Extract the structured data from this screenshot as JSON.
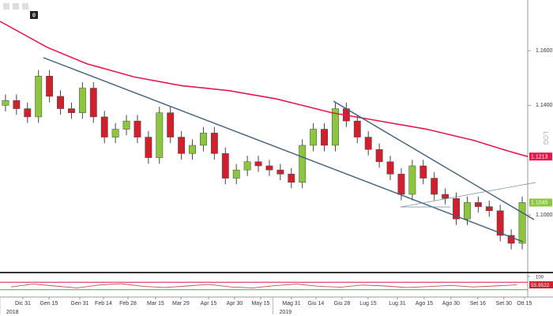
{
  "chart_data": {
    "type": "candlestick",
    "toolbar_label": "0",
    "scale_label": "LOG",
    "up_color": "#8cc63f",
    "down_color": "#d0202e",
    "xlim": [
      0,
      48
    ],
    "ylim": [
      1.0795,
      1.1785
    ],
    "yticks": [
      {
        "value": 1.16,
        "label": "1.1600"
      },
      {
        "value": 1.14,
        "label": "1.1400"
      },
      {
        "value": 1.1,
        "label": "1.1000"
      }
    ],
    "xticks": [
      {
        "value": 2.08,
        "label": "Dic 31"
      },
      {
        "value": 4.45,
        "label": "Gen 15"
      },
      {
        "value": 7.26,
        "label": "Gen 31"
      },
      {
        "value": 9.41,
        "label": "Feb 14"
      },
      {
        "value": 11.64,
        "label": "Feb 28"
      },
      {
        "value": 14.15,
        "label": "Mar 15"
      },
      {
        "value": 16.45,
        "label": "Mar 29"
      },
      {
        "value": 18.97,
        "label": "Apr 15"
      },
      {
        "value": 21.34,
        "label": "Apr 30"
      },
      {
        "value": 23.71,
        "label": "May 15"
      },
      {
        "value": 26.51,
        "label": "Mag 31"
      },
      {
        "value": 28.74,
        "label": "Giu 14"
      },
      {
        "value": 31.11,
        "label": "Giu 28"
      },
      {
        "value": 33.48,
        "label": "Lug 15"
      },
      {
        "value": 36.14,
        "label": "Lug 31"
      },
      {
        "value": 38.58,
        "label": "Ago 15"
      },
      {
        "value": 41.02,
        "label": "Ago 30"
      },
      {
        "value": 43.46,
        "label": "Set 16"
      },
      {
        "value": 45.83,
        "label": "Set 30"
      },
      {
        "value": 47.7,
        "label": "Ott 15"
      }
    ],
    "year_ticks": [
      {
        "value": 0.57,
        "label": "2018"
      },
      {
        "value": 25.4,
        "label": "2019"
      }
    ],
    "open": [
      1.14,
      1.1418,
      1.1388,
      1.1358,
      1.1507,
      1.1433,
      1.1388,
      1.1373,
      1.1463,
      1.1358,
      1.1284,
      1.1313,
      1.1343,
      1.1284,
      1.1209,
      1.1373,
      1.1284,
      1.1224,
      1.1254,
      1.1299,
      1.1224,
      1.1134,
      1.1164,
      1.1194,
      1.1179,
      1.1164,
      1.1149,
      1.1119,
      1.1254,
      1.1313,
      1.1254,
      1.1388,
      1.1343,
      1.1284,
      1.1239,
      1.1194,
      1.1149,
      1.1075,
      1.1179,
      1.1134,
      1.1075,
      1.106,
      1.0985,
      1.1045,
      1.103,
      1.1015,
      1.0925,
      1.0896
    ],
    "high": [
      1.144,
      1.144,
      1.141,
      1.1529,
      1.1529,
      1.1455,
      1.141,
      1.1485,
      1.1485,
      1.138,
      1.1335,
      1.1365,
      1.1365,
      1.1306,
      1.1395,
      1.1395,
      1.1306,
      1.1276,
      1.1321,
      1.1321,
      1.1246,
      1.1186,
      1.1216,
      1.1216,
      1.1201,
      1.1186,
      1.1171,
      1.1276,
      1.1335,
      1.1335,
      1.141,
      1.141,
      1.1365,
      1.1306,
      1.1261,
      1.1216,
      1.1171,
      1.1201,
      1.1201,
      1.1156,
      1.1097,
      1.1082,
      1.1067,
      1.1067,
      1.1052,
      1.1037,
      1.0947,
      1.1067
    ],
    "low": [
      1.1378,
      1.1366,
      1.1336,
      1.1336,
      1.1411,
      1.1366,
      1.1351,
      1.1351,
      1.1336,
      1.1262,
      1.1262,
      1.1291,
      1.1262,
      1.1187,
      1.1187,
      1.1262,
      1.1202,
      1.1202,
      1.1232,
      1.1202,
      1.1112,
      1.1112,
      1.1142,
      1.1157,
      1.1142,
      1.1127,
      1.1097,
      1.1097,
      1.1232,
      1.1232,
      1.1232,
      1.1321,
      1.1262,
      1.1217,
      1.1172,
      1.1127,
      1.1053,
      1.1053,
      1.1112,
      1.1053,
      1.1038,
      1.0963,
      1.0963,
      1.1008,
      1.0993,
      1.0903,
      1.0874,
      1.0874
    ],
    "close": [
      1.1418,
      1.1388,
      1.1358,
      1.1507,
      1.1433,
      1.1388,
      1.1373,
      1.1463,
      1.1358,
      1.1284,
      1.1313,
      1.1343,
      1.1284,
      1.1209,
      1.1373,
      1.1284,
      1.1224,
      1.1254,
      1.1299,
      1.1224,
      1.1134,
      1.1164,
      1.1194,
      1.1179,
      1.1164,
      1.1149,
      1.1119,
      1.1254,
      1.1313,
      1.1254,
      1.1388,
      1.1343,
      1.1284,
      1.1239,
      1.1194,
      1.1149,
      1.1075,
      1.1179,
      1.1134,
      1.1075,
      1.106,
      1.0985,
      1.1045,
      1.103,
      1.1015,
      1.0925,
      1.0896,
      1.1045
    ],
    "ma": {
      "color": "#e8174a",
      "x": [
        0,
        4.3,
        7.9,
        12.2,
        16.5,
        20.8,
        25.1,
        30.2,
        34.5,
        38.8,
        43.1,
        46,
        48
      ],
      "values": [
        1.1707,
        1.1612,
        1.1552,
        1.1504,
        1.1472,
        1.1454,
        1.1424,
        1.1373,
        1.1343,
        1.1313,
        1.1272,
        1.1236,
        1.1213
      ]
    },
    "indicator": {
      "color": "#c0505a",
      "ylim": [
        0,
        100
      ],
      "yticks": [
        100
      ],
      "levels": [
        {
          "value": 30,
          "color": "#3cb043"
        },
        {
          "value": 70,
          "color": "#e8174a"
        }
      ],
      "x": [
        1,
        3,
        5,
        7,
        9,
        11,
        13,
        15,
        17,
        19,
        21,
        23,
        25,
        27,
        29,
        31,
        33,
        35,
        37,
        39,
        41,
        43,
        45,
        47
      ],
      "values": [
        45,
        60,
        50,
        40,
        55,
        62,
        48,
        42,
        50,
        58,
        45,
        40,
        52,
        60,
        48,
        44,
        55,
        50,
        42,
        47,
        53,
        45,
        50,
        55.9522
      ]
    }
  }
}
